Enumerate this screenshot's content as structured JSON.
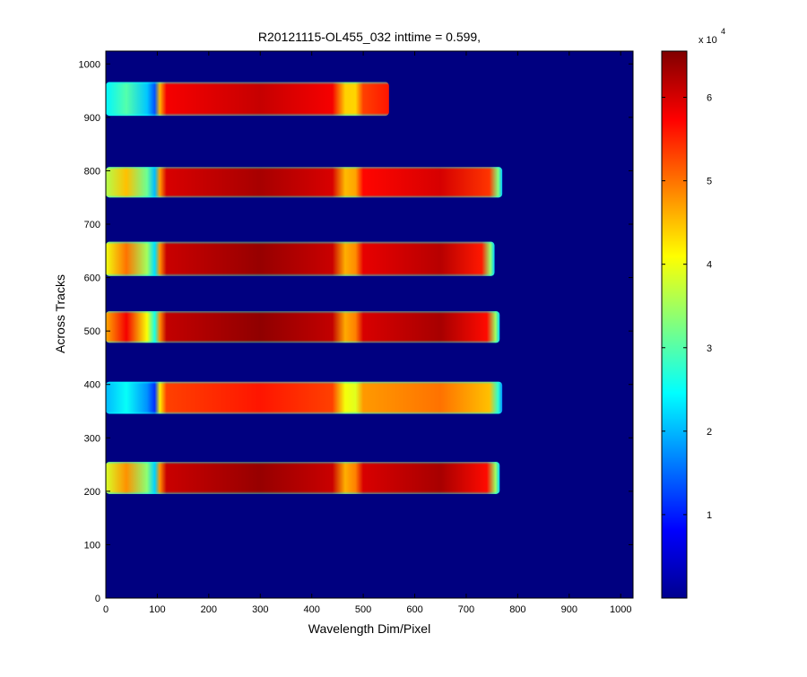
{
  "chart_data": {
    "type": "heatmap",
    "title": "R20121115-OL455_032 inttime = 0.599,",
    "xlabel": "Wavelength Dim/Pixel",
    "ylabel": "Across Tracks",
    "xlim": [
      0,
      1024
    ],
    "ylim": [
      0,
      1024
    ],
    "x_ticks": [
      0,
      100,
      200,
      300,
      400,
      500,
      600,
      700,
      800,
      900,
      1000
    ],
    "y_ticks": [
      0,
      100,
      200,
      300,
      400,
      500,
      600,
      700,
      800,
      900,
      1000
    ],
    "colormap": "jet",
    "background_value": 0,
    "colorbar": {
      "range": [
        0,
        65535
      ],
      "ticks": [
        1,
        2,
        3,
        4,
        5,
        6
      ],
      "multiplier_base": "x 10",
      "multiplier_exponent": "4"
    },
    "bands": [
      {
        "y_low": 903,
        "y_high": 966,
        "left_spot": 30000,
        "segment1": 61000,
        "segment2": 56000,
        "x_end": 550
      },
      {
        "y_low": 750,
        "y_high": 807,
        "left_spot": 45000,
        "segment1": 63000,
        "segment2": 60000,
        "x_end": 770
      },
      {
        "y_low": 603,
        "y_high": 667,
        "left_spot": 50000,
        "segment1": 64000,
        "segment2": 62000,
        "x_end": 755
      },
      {
        "y_low": 478,
        "y_high": 537,
        "left_spot": 58000,
        "segment1": 64500,
        "segment2": 63000,
        "x_end": 765
      },
      {
        "y_low": 345,
        "y_high": 405,
        "left_spot": 25000,
        "segment1": 56000,
        "segment2": 50000,
        "x_end": 770
      },
      {
        "y_low": 195,
        "y_high": 255,
        "left_spot": 48000,
        "segment1": 64000,
        "segment2": 63000,
        "x_end": 765
      }
    ]
  }
}
